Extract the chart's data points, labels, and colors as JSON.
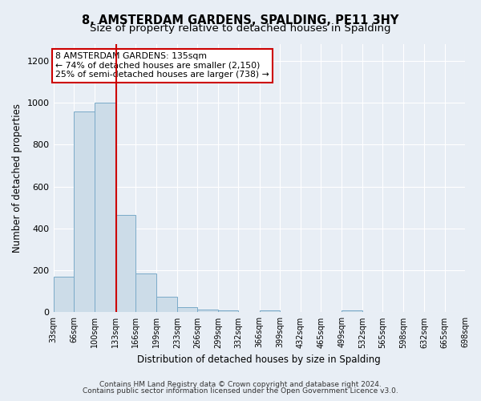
{
  "title": "8, AMSTERDAM GARDENS, SPALDING, PE11 3HY",
  "subtitle": "Size of property relative to detached houses in Spalding",
  "xlabel": "Distribution of detached houses by size in Spalding",
  "ylabel": "Number of detached properties",
  "footnote1": "Contains HM Land Registry data © Crown copyright and database right 2024.",
  "footnote2": "Contains public sector information licensed under the Open Government Licence v3.0.",
  "bin_edges": [
    33,
    66,
    100,
    133,
    166,
    199,
    233,
    266,
    299,
    332,
    366,
    399,
    432,
    465,
    499,
    532,
    565,
    598,
    632,
    665,
    698
  ],
  "bar_heights": [
    170,
    960,
    1000,
    465,
    185,
    75,
    25,
    15,
    10,
    0,
    10,
    0,
    0,
    0,
    10,
    0,
    0,
    0,
    0,
    0
  ],
  "bar_color": "#ccdce8",
  "bar_edgecolor": "#7aaac8",
  "property_size": 135,
  "red_line_color": "#cc0000",
  "ann_line1": "8 AMSTERDAM GARDENS: 135sqm",
  "ann_line2": "← 74% of detached houses are smaller (2,150)",
  "ann_line3": "25% of semi-detached houses are larger (738) →",
  "ann_box_edgecolor": "#cc0000",
  "ann_box_facecolor": "#ffffff",
  "ylim": [
    0,
    1280
  ],
  "yticks": [
    0,
    200,
    400,
    600,
    800,
    1000,
    1200
  ],
  "bg_color": "#e8eef5",
  "plot_bg_color": "#e8eef5",
  "grid_color": "#ffffff",
  "title_fontsize": 10.5,
  "subtitle_fontsize": 9.5,
  "axis_label_fontsize": 8.5,
  "tick_label_fontsize": 7,
  "footnote_fontsize": 6.5
}
